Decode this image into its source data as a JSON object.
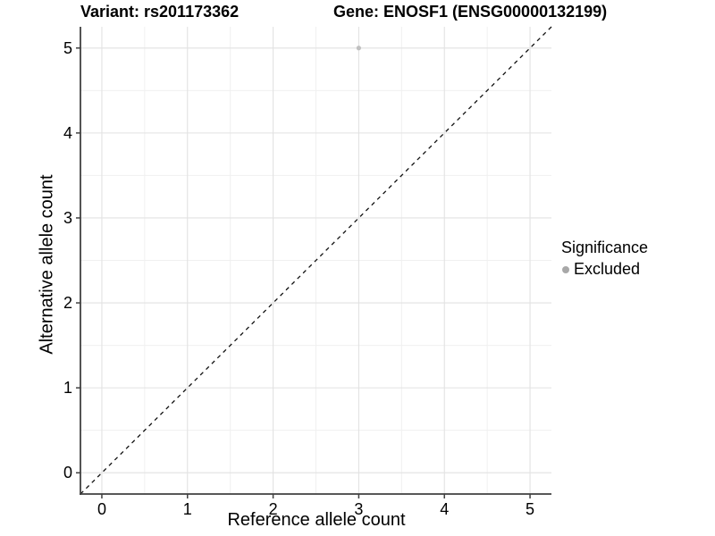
{
  "chart_data": {
    "type": "scatter",
    "titles": {
      "left": "Variant: rs201173362",
      "right": "Gene: ENOSF1 (ENSG00000132199)"
    },
    "xlabel": "Reference allele count",
    "ylabel": "Alternative allele count",
    "xlim": [
      -0.25,
      5.25
    ],
    "ylim": [
      -0.25,
      5.25
    ],
    "xticks": [
      0,
      1,
      2,
      3,
      4,
      5
    ],
    "yticks": [
      0,
      1,
      2,
      3,
      4,
      5
    ],
    "grid": {
      "major_step": 1,
      "minor_step": 0.5,
      "on": true
    },
    "identity_line": {
      "style": "dashed",
      "from": [
        -0.25,
        -0.25
      ],
      "to": [
        5.25,
        5.25
      ]
    },
    "series": [
      {
        "name": "Excluded",
        "points": [
          {
            "x": 3,
            "y": 5
          }
        ]
      }
    ],
    "legend": {
      "title": "Significance",
      "position": "right",
      "items": [
        {
          "label": "Excluded",
          "marker": "circle"
        }
      ]
    }
  },
  "colors": {
    "background": "#ffffff",
    "grid_major": "#e2e2e2",
    "grid_minor": "#f0f0f0",
    "axis": "#404040",
    "text": "#000000",
    "point_excluded": "#c0c0c0",
    "legend_marker": "#a8a8a8",
    "identity_line": "#111111"
  }
}
